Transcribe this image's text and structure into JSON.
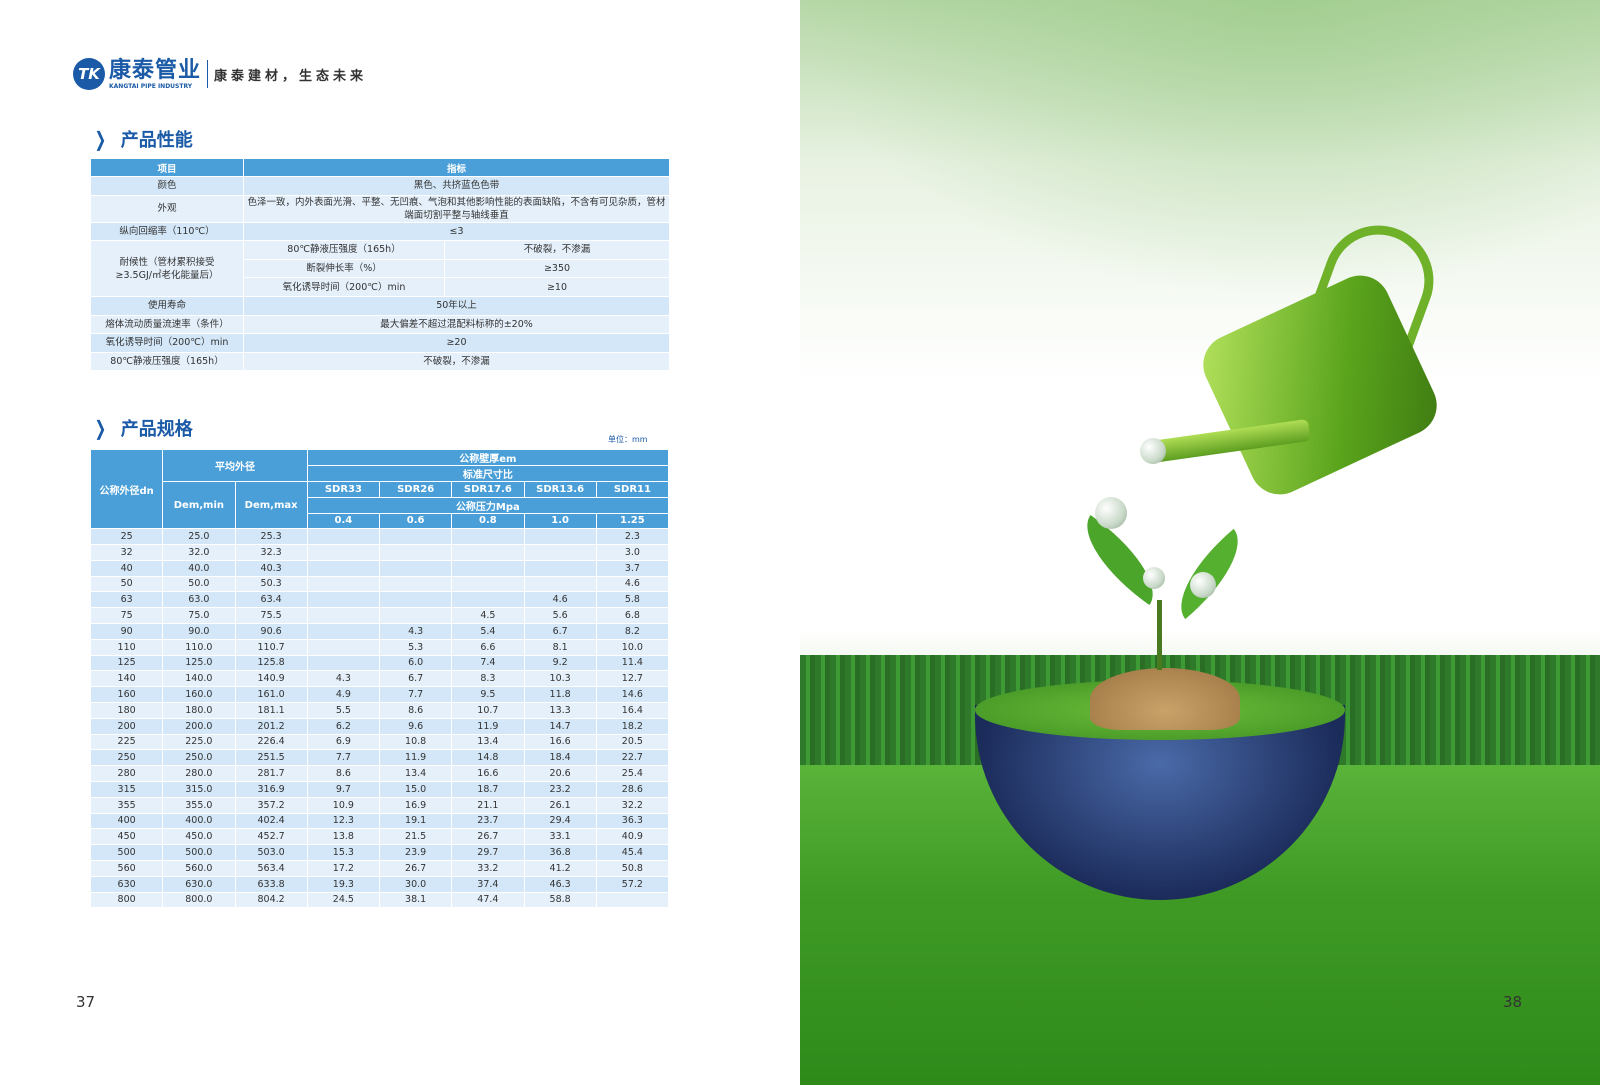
{
  "brand": {
    "mark": "TK",
    "name_cn": "康泰",
    "name_cn2": "管业",
    "name_en": "KANGTAI PIPE INDUSTRY",
    "slogan": "康泰建材，生态未来"
  },
  "performance": {
    "title": "产品性能",
    "headers": [
      "项目",
      "指标"
    ],
    "rows": [
      {
        "item": "颜色",
        "value": "黑色、共挤蓝色色带"
      },
      {
        "item": "外观",
        "value": "色泽一致，内外表面光滑、平整、无凹痕、气泡和其他影响性能的表面缺陷，不含有可见杂质，管材端面切割平整与轴线垂直"
      },
      {
        "item": "纵向回缩率（110℃）",
        "value": "≤3"
      }
    ],
    "weather": {
      "item": "耐候性（管材累积接受≥3.5GJ/㎡老化能量后）",
      "sub": [
        {
          "item": "80℃静液压强度（165h）",
          "value": "不破裂，不渗漏"
        },
        {
          "item": "断裂伸长率（%）",
          "value": "≥350"
        },
        {
          "item": "氧化诱导时间（200℃）min",
          "value": "≥10"
        }
      ]
    },
    "rows2": [
      {
        "item": "使用寿命",
        "value": "50年以上"
      },
      {
        "item": "熔体流动质量流速率（条件）",
        "value": "最大偏差不超过混配料标称的±20%"
      },
      {
        "item": "氧化诱导时间（200℃）min",
        "value": "≥20"
      },
      {
        "item": "80℃静液压强度（165h）",
        "value": "不破裂，不渗漏"
      }
    ]
  },
  "spec": {
    "title": "产品规格",
    "unit": "单位：mm",
    "h_dn": "公称外径dn",
    "h_avg": "平均外径",
    "h_wall": "公称壁厚em",
    "h_sdr": "标准尺寸比",
    "h_pn": "公称压力Mpa",
    "h_min": "Dem,min",
    "h_max": "Dem,max",
    "sdr": [
      "SDR33",
      "SDR26",
      "SDR17.6",
      "SDR13.6",
      "SDR11"
    ],
    "pn": [
      "0.4",
      "0.6",
      "0.8",
      "1.0",
      "1.25"
    ],
    "rows": [
      [
        "25",
        "25.0",
        "25.3",
        "",
        "",
        "",
        "",
        "2.3"
      ],
      [
        "32",
        "32.0",
        "32.3",
        "",
        "",
        "",
        "",
        "3.0"
      ],
      [
        "40",
        "40.0",
        "40.3",
        "",
        "",
        "",
        "",
        "3.7"
      ],
      [
        "50",
        "50.0",
        "50.3",
        "",
        "",
        "",
        "",
        "4.6"
      ],
      [
        "63",
        "63.0",
        "63.4",
        "",
        "",
        "",
        "4.6",
        "5.8"
      ],
      [
        "75",
        "75.0",
        "75.5",
        "",
        "",
        "4.5",
        "5.6",
        "6.8"
      ],
      [
        "90",
        "90.0",
        "90.6",
        "",
        "4.3",
        "5.4",
        "6.7",
        "8.2"
      ],
      [
        "110",
        "110.0",
        "110.7",
        "",
        "5.3",
        "6.6",
        "8.1",
        "10.0"
      ],
      [
        "125",
        "125.0",
        "125.8",
        "",
        "6.0",
        "7.4",
        "9.2",
        "11.4"
      ],
      [
        "140",
        "140.0",
        "140.9",
        "4.3",
        "6.7",
        "8.3",
        "10.3",
        "12.7"
      ],
      [
        "160",
        "160.0",
        "161.0",
        "4.9",
        "7.7",
        "9.5",
        "11.8",
        "14.6"
      ],
      [
        "180",
        "180.0",
        "181.1",
        "5.5",
        "8.6",
        "10.7",
        "13.3",
        "16.4"
      ],
      [
        "200",
        "200.0",
        "201.2",
        "6.2",
        "9.6",
        "11.9",
        "14.7",
        "18.2"
      ],
      [
        "225",
        "225.0",
        "226.4",
        "6.9",
        "10.8",
        "13.4",
        "16.6",
        "20.5"
      ],
      [
        "250",
        "250.0",
        "251.5",
        "7.7",
        "11.9",
        "14.8",
        "18.4",
        "22.7"
      ],
      [
        "280",
        "280.0",
        "281.7",
        "8.6",
        "13.4",
        "16.6",
        "20.6",
        "25.4"
      ],
      [
        "315",
        "315.0",
        "316.9",
        "9.7",
        "15.0",
        "18.7",
        "23.2",
        "28.6"
      ],
      [
        "355",
        "355.0",
        "357.2",
        "10.9",
        "16.9",
        "21.1",
        "26.1",
        "32.2"
      ],
      [
        "400",
        "400.0",
        "402.4",
        "12.3",
        "19.1",
        "23.7",
        "29.4",
        "36.3"
      ],
      [
        "450",
        "450.0",
        "452.7",
        "13.8",
        "21.5",
        "26.7",
        "33.1",
        "40.9"
      ],
      [
        "500",
        "500.0",
        "503.0",
        "15.3",
        "23.9",
        "29.7",
        "36.8",
        "45.4"
      ],
      [
        "560",
        "560.0",
        "563.4",
        "17.2",
        "26.7",
        "33.2",
        "41.2",
        "50.8"
      ],
      [
        "630",
        "630.0",
        "633.8",
        "19.3",
        "30.0",
        "37.4",
        "46.3",
        "57.2"
      ],
      [
        "800",
        "800.0",
        "804.2",
        "24.5",
        "38.1",
        "47.4",
        "58.8",
        ""
      ]
    ]
  },
  "pages": {
    "left": "37",
    "right": "38"
  },
  "colors": {
    "brand": "#1a5aa6",
    "header": "#4a9fd8",
    "row_a": "#d3e7f8",
    "row_b": "#e5f0fb"
  }
}
